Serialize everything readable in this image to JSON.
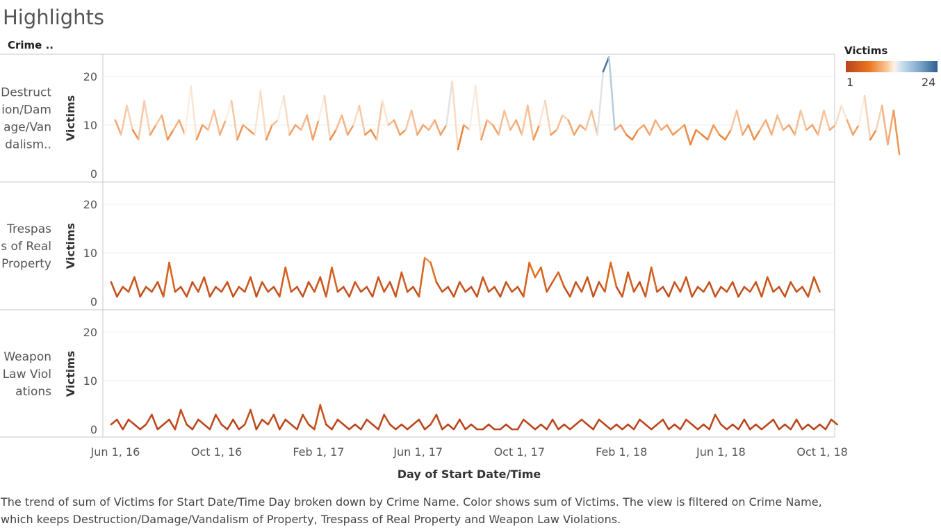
{
  "title": "Highlights",
  "row_header": "Crime ..",
  "legend": {
    "title": "Victims",
    "min_label": "1",
    "max_label": "24",
    "colors": [
      "#b8451c",
      "#e9741f",
      "#fdf3ea",
      "#7ea9cd",
      "#2f5f8e"
    ]
  },
  "caption": "The trend of sum of Victims for Start Date/Time Day broken down by Crime Name.  Color shows sum of Victims. The view is filtered on Crime Name, which keeps Destruction/Damage/Vandalism of Property, Trespass of Real Property and Weapon Law Violations.",
  "chart_data": {
    "type": "line",
    "xlabel": "Day of Start Date/Time",
    "ylabel": "Victims",
    "x_ticks": [
      "Jun 1, 16",
      "Oct 1, 16",
      "Feb 1, 17",
      "Jun 1, 17",
      "Oct 1, 17",
      "Feb 1, 18",
      "Jun 1, 18",
      "Oct 1, 18"
    ],
    "x_range": [
      "2016-05-17",
      "2018-10-16"
    ],
    "ylim": [
      0,
      27
    ],
    "y_ticks": [
      0,
      10,
      20
    ],
    "grid": true,
    "color_scale": {
      "field": "Victims",
      "min": 1,
      "max": 24
    },
    "panels": [
      {
        "name": "Destruction/Damage/Vandalism of Property",
        "label_lines": [
          "Destruct",
          "ion/Dam",
          "age/Van",
          "dalism.."
        ],
        "start": "2016-06-01",
        "step_days": 7,
        "values": [
          11,
          8,
          14,
          9,
          7,
          15,
          8,
          10,
          12,
          7,
          9,
          11,
          8,
          18,
          7,
          10,
          9,
          13,
          8,
          11,
          15,
          7,
          10,
          9,
          8,
          17,
          7,
          10,
          11,
          16,
          8,
          10,
          9,
          12,
          7,
          11,
          16,
          7,
          9,
          12,
          8,
          10,
          14,
          8,
          9,
          7,
          15,
          10,
          11,
          8,
          9,
          13,
          8,
          10,
          9,
          11,
          8,
          10,
          19,
          5,
          10,
          9,
          18,
          7,
          11,
          10,
          8,
          13,
          9,
          11,
          8,
          14,
          7,
          10,
          15,
          8,
          9,
          12,
          11,
          8,
          10,
          9,
          13,
          8,
          21,
          24,
          9,
          10,
          8,
          7,
          9,
          10,
          8,
          11,
          9,
          10,
          8,
          9,
          10,
          6,
          9,
          8,
          7,
          10,
          8,
          7,
          9,
          13,
          8,
          10,
          7,
          9,
          11,
          8,
          12,
          9,
          10,
          8,
          13,
          9,
          10,
          8,
          13,
          9,
          10,
          14,
          11,
          8,
          10,
          16,
          7,
          9,
          14,
          6,
          13,
          4
        ]
      },
      {
        "name": "Trespass of Real Property",
        "label_lines": [
          "Trespas",
          "s of Real",
          "Property"
        ],
        "start": "2016-05-27",
        "step_days": 7,
        "values": [
          4,
          1,
          3,
          2,
          5,
          1,
          3,
          2,
          4,
          1,
          8,
          2,
          3,
          1,
          4,
          2,
          5,
          1,
          3,
          2,
          4,
          1,
          3,
          2,
          5,
          1,
          4,
          2,
          3,
          1,
          7,
          2,
          3,
          1,
          4,
          2,
          5,
          1,
          7,
          2,
          3,
          1,
          4,
          2,
          3,
          1,
          5,
          2,
          4,
          1,
          6,
          2,
          3,
          1,
          9,
          8,
          4,
          2,
          3,
          1,
          4,
          2,
          3,
          1,
          5,
          2,
          3,
          1,
          4,
          2,
          3,
          1,
          8,
          5,
          7,
          2,
          4,
          6,
          3,
          1,
          4,
          2,
          5,
          1,
          4,
          2,
          8,
          3,
          1,
          6,
          2,
          4,
          1,
          7,
          2,
          3,
          1,
          4,
          2,
          5,
          1,
          3,
          2,
          4,
          1,
          3,
          2,
          4,
          1,
          3,
          2,
          4,
          1,
          5,
          2,
          3,
          1,
          4,
          2,
          3,
          1,
          5,
          2
        ]
      },
      {
        "name": "Weapon Law Violations",
        "label_lines": [
          "Weapon",
          "Law Viol",
          "ations"
        ],
        "start": "2016-05-27",
        "step_days": 7,
        "values": [
          1,
          2,
          0,
          2,
          1,
          0,
          1,
          3,
          0,
          1,
          2,
          0,
          4,
          1,
          0,
          2,
          1,
          0,
          3,
          1,
          0,
          2,
          0,
          1,
          4,
          0,
          2,
          1,
          3,
          0,
          2,
          1,
          0,
          3,
          1,
          0,
          5,
          1,
          0,
          2,
          1,
          0,
          1,
          0,
          2,
          1,
          0,
          3,
          1,
          0,
          1,
          0,
          1,
          2,
          0,
          1,
          3,
          0,
          1,
          0,
          2,
          0,
          1,
          0,
          0,
          1,
          0,
          0,
          1,
          0,
          0,
          2,
          1,
          0,
          1,
          0,
          2,
          0,
          1,
          0,
          1,
          2,
          1,
          0,
          2,
          1,
          0,
          1,
          0,
          1,
          0,
          2,
          1,
          0,
          1,
          2,
          0,
          1,
          0,
          2,
          1,
          0,
          1,
          0,
          3,
          1,
          0,
          1,
          0,
          2,
          0,
          1,
          0,
          1,
          2,
          0,
          1,
          0,
          2,
          0,
          1,
          0,
          1,
          0,
          2,
          1
        ]
      }
    ]
  }
}
